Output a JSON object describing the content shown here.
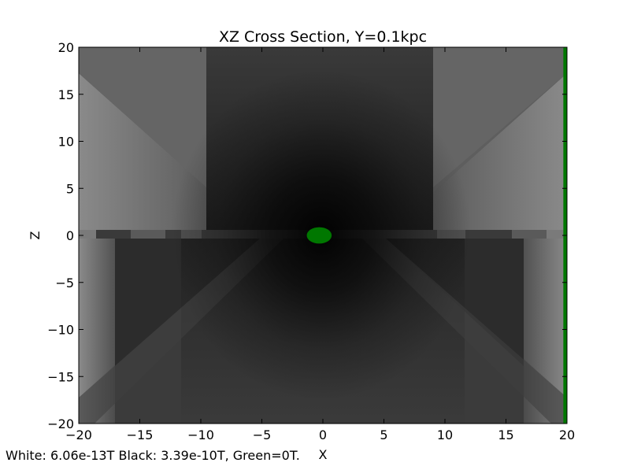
{
  "chart_data": {
    "type": "heatmap",
    "title": "XZ Cross Section, Y=0.1kpc",
    "xlabel": "X",
    "ylabel": "Z",
    "xlim": [
      -20,
      20
    ],
    "ylim": [
      -20,
      20
    ],
    "xticks": [
      -20,
      -15,
      -10,
      -5,
      0,
      5,
      10,
      15,
      20
    ],
    "yticks": [
      20,
      15,
      10,
      5,
      0,
      -5,
      -10,
      -15,
      -20
    ],
    "xtick_labels": [
      "−20",
      "−15",
      "−10",
      "−5",
      "0",
      "5",
      "10",
      "15",
      "20"
    ],
    "ytick_labels": [
      "20",
      "15",
      "10",
      "5",
      "0",
      "−5",
      "−10",
      "−15",
      "−20"
    ],
    "colormap": "grayscale",
    "scale": {
      "white_value": "6.06e-13T",
      "black_value": "3.39e-10T",
      "green_value": "0T"
    },
    "green_regions": [
      {
        "name": "center-blob",
        "center": [
          -0.3,
          0
        ],
        "radius_x": 1.0,
        "radius_z": 0.9
      },
      {
        "name": "right-edge-strip",
        "x_range": [
          19.7,
          20
        ],
        "z_range": [
          -20,
          20
        ]
      }
    ],
    "grid": false,
    "colors": {
      "green": "#007700",
      "frame": "#000000"
    }
  },
  "footnote": "White: 6.06e-13T  Black: 3.39e-10T, Green=0T."
}
